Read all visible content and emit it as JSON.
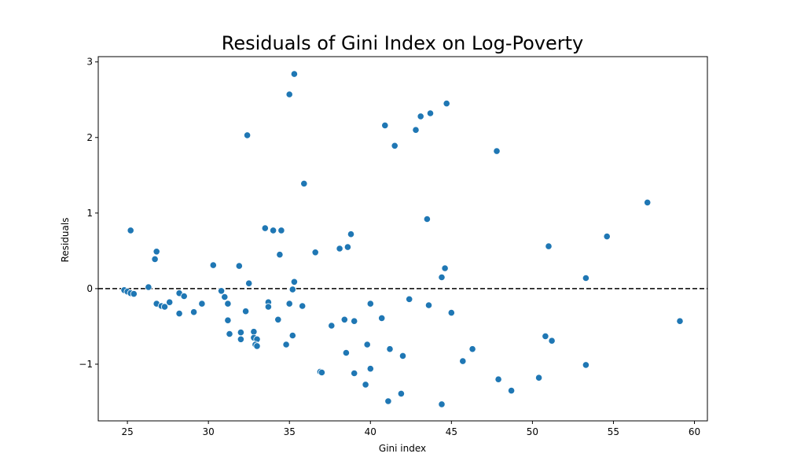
{
  "chart_data": {
    "type": "scatter",
    "title": "Residuals of Gini Index on Log-Poverty",
    "xlabel": "Gini index",
    "ylabel": "Residuals",
    "xlim": [
      23.2,
      60.8
    ],
    "ylim": [
      -1.75,
      3.07
    ],
    "xticks": [
      25,
      30,
      35,
      40,
      45,
      50,
      55,
      60
    ],
    "yticks": [
      -1,
      0,
      1,
      2,
      3
    ],
    "ytick_labels": [
      "−1",
      "0",
      "1",
      "2",
      "3"
    ],
    "grid": false,
    "reference_line": {
      "y": 0,
      "style": "dashed",
      "color": "#000000"
    },
    "colors": {
      "points": "#1f77b4",
      "point_edge": "#ffffff",
      "axes": "#000000"
    },
    "points": [
      {
        "x": 24.8,
        "y": -0.02
      },
      {
        "x": 25.0,
        "y": -0.04
      },
      {
        "x": 25.2,
        "y": -0.06
      },
      {
        "x": 25.4,
        "y": -0.07
      },
      {
        "x": 25.2,
        "y": 0.77
      },
      {
        "x": 26.3,
        "y": 0.02
      },
      {
        "x": 26.7,
        "y": 0.39
      },
      {
        "x": 26.8,
        "y": 0.49
      },
      {
        "x": 26.8,
        "y": -0.2
      },
      {
        "x": 27.1,
        "y": -0.23
      },
      {
        "x": 27.3,
        "y": -0.24
      },
      {
        "x": 27.6,
        "y": -0.18
      },
      {
        "x": 28.2,
        "y": -0.06
      },
      {
        "x": 28.5,
        "y": -0.1
      },
      {
        "x": 28.2,
        "y": -0.33
      },
      {
        "x": 29.1,
        "y": -0.31
      },
      {
        "x": 29.6,
        "y": -0.2
      },
      {
        "x": 30.3,
        "y": 0.31
      },
      {
        "x": 30.8,
        "y": -0.03
      },
      {
        "x": 31.0,
        "y": -0.11
      },
      {
        "x": 31.2,
        "y": -0.2
      },
      {
        "x": 31.2,
        "y": -0.42
      },
      {
        "x": 31.3,
        "y": -0.6
      },
      {
        "x": 31.9,
        "y": 0.3
      },
      {
        "x": 32.0,
        "y": -0.58
      },
      {
        "x": 32.0,
        "y": -0.67
      },
      {
        "x": 32.3,
        "y": -0.3
      },
      {
        "x": 32.4,
        "y": 2.03
      },
      {
        "x": 32.5,
        "y": 0.07
      },
      {
        "x": 32.8,
        "y": -0.57
      },
      {
        "x": 32.8,
        "y": -0.65
      },
      {
        "x": 33.0,
        "y": -0.67
      },
      {
        "x": 32.9,
        "y": -0.74
      },
      {
        "x": 33.0,
        "y": -0.76
      },
      {
        "x": 33.5,
        "y": 0.8
      },
      {
        "x": 33.7,
        "y": -0.18
      },
      {
        "x": 33.7,
        "y": -0.24
      },
      {
        "x": 34.0,
        "y": 0.77
      },
      {
        "x": 34.3,
        "y": -0.41
      },
      {
        "x": 34.4,
        "y": 0.45
      },
      {
        "x": 34.5,
        "y": 0.77
      },
      {
        "x": 34.8,
        "y": -0.74
      },
      {
        "x": 35.0,
        "y": 2.57
      },
      {
        "x": 35.0,
        "y": -0.2
      },
      {
        "x": 35.2,
        "y": -0.62
      },
      {
        "x": 35.2,
        "y": -0.01
      },
      {
        "x": 35.3,
        "y": 2.84
      },
      {
        "x": 35.3,
        "y": 0.09
      },
      {
        "x": 35.8,
        "y": -0.23
      },
      {
        "x": 35.9,
        "y": 1.39
      },
      {
        "x": 36.6,
        "y": 0.48
      },
      {
        "x": 36.9,
        "y": -1.1
      },
      {
        "x": 37.0,
        "y": -1.11
      },
      {
        "x": 37.6,
        "y": -0.49
      },
      {
        "x": 38.1,
        "y": 0.53
      },
      {
        "x": 38.4,
        "y": -0.41
      },
      {
        "x": 38.5,
        "y": -0.85
      },
      {
        "x": 38.6,
        "y": 0.55
      },
      {
        "x": 38.8,
        "y": 0.72
      },
      {
        "x": 39.0,
        "y": -0.43
      },
      {
        "x": 39.0,
        "y": -1.12
      },
      {
        "x": 39.7,
        "y": -1.27
      },
      {
        "x": 39.8,
        "y": -0.74
      },
      {
        "x": 40.0,
        "y": -0.2
      },
      {
        "x": 40.0,
        "y": -1.06
      },
      {
        "x": 40.7,
        "y": -0.39
      },
      {
        "x": 40.9,
        "y": 2.16
      },
      {
        "x": 41.1,
        "y": -1.49
      },
      {
        "x": 41.2,
        "y": -0.8
      },
      {
        "x": 41.5,
        "y": 1.89
      },
      {
        "x": 41.9,
        "y": -1.39
      },
      {
        "x": 42.0,
        "y": -0.89
      },
      {
        "x": 42.4,
        "y": -0.14
      },
      {
        "x": 42.8,
        "y": 2.1
      },
      {
        "x": 43.1,
        "y": 2.28
      },
      {
        "x": 43.5,
        "y": 0.92
      },
      {
        "x": 43.6,
        "y": -0.22
      },
      {
        "x": 43.7,
        "y": 2.32
      },
      {
        "x": 44.4,
        "y": 0.15
      },
      {
        "x": 44.4,
        "y": -1.53
      },
      {
        "x": 44.6,
        "y": 0.27
      },
      {
        "x": 44.7,
        "y": 2.45
      },
      {
        "x": 45.0,
        "y": -0.32
      },
      {
        "x": 45.7,
        "y": -0.96
      },
      {
        "x": 46.3,
        "y": -0.8
      },
      {
        "x": 47.8,
        "y": 1.82
      },
      {
        "x": 47.9,
        "y": -1.2
      },
      {
        "x": 48.7,
        "y": -1.35
      },
      {
        "x": 50.4,
        "y": -1.18
      },
      {
        "x": 50.8,
        "y": -0.63
      },
      {
        "x": 51.0,
        "y": 0.56
      },
      {
        "x": 51.2,
        "y": -0.69
      },
      {
        "x": 53.3,
        "y": 0.14
      },
      {
        "x": 53.3,
        "y": -1.01
      },
      {
        "x": 54.6,
        "y": 0.69
      },
      {
        "x": 57.1,
        "y": 1.14
      },
      {
        "x": 59.1,
        "y": -0.43
      }
    ]
  }
}
